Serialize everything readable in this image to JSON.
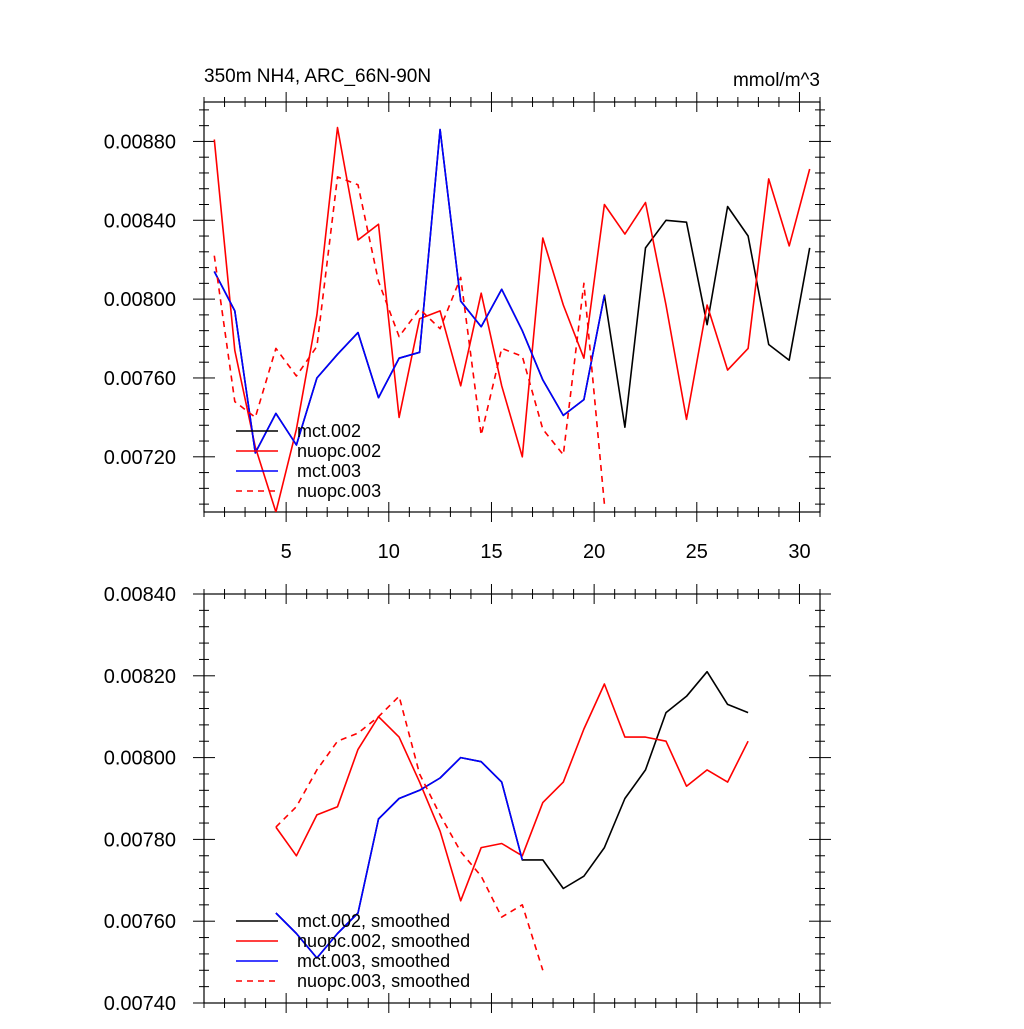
{
  "chart_data": [
    {
      "type": "line",
      "title": "350m NH4, ARC_66N-90N",
      "units": "mmol/m^3",
      "xlim": [
        1,
        31
      ],
      "ylim": [
        0.00692,
        0.009
      ],
      "xticks": [
        5,
        10,
        15,
        20,
        25,
        30
      ],
      "xtick_labels": [
        "5",
        "10",
        "15",
        "20",
        "25",
        "30"
      ],
      "yticks": [
        0.0072,
        0.0076,
        0.008,
        0.0084,
        0.0088
      ],
      "ytick_labels": [
        "0.00720",
        "0.00760",
        "0.00800",
        "0.00840",
        "0.00880"
      ],
      "series": [
        {
          "name": "mct.002",
          "color": "#000000",
          "dash": "solid",
          "x": [
            1.5,
            2.5,
            3.5,
            4.5,
            5.5,
            6.5,
            7.5,
            8.5,
            9.5,
            10.5,
            11.5,
            12.5,
            13.5,
            14.5,
            15.5,
            16.5,
            17.5,
            18.5,
            19.5,
            20.5,
            21.5,
            22.5,
            23.5,
            24.5,
            25.5,
            26.5,
            27.5,
            28.5,
            29.5,
            30.5
          ],
          "y": [
            0.00814,
            0.00794,
            0.00722,
            0.00742,
            0.00726,
            0.0076,
            0.00772,
            0.00783,
            0.0075,
            0.0077,
            0.00773,
            0.00886,
            0.00799,
            0.00786,
            0.00805,
            0.00784,
            0.00759,
            0.00741,
            0.00749,
            0.00802,
            0.00735,
            0.00826,
            0.0084,
            0.00839,
            0.00787,
            0.00847,
            0.00832,
            0.00777,
            0.00769,
            0.00826
          ]
        },
        {
          "name": "nuopc.002",
          "color": "#ff0000",
          "dash": "solid",
          "x": [
            1.5,
            2.5,
            3.5,
            4.5,
            5.5,
            6.5,
            7.5,
            8.5,
            9.5,
            10.5,
            11.5,
            12.5,
            13.5,
            14.5,
            15.5,
            16.5,
            17.5,
            18.5,
            19.5,
            20.5,
            21.5,
            22.5,
            23.5,
            24.5,
            25.5,
            26.5,
            27.5,
            28.5,
            29.5,
            30.5
          ],
          "y": [
            0.00881,
            0.00774,
            0.00725,
            0.00692,
            0.00734,
            0.00792,
            0.00887,
            0.0083,
            0.00838,
            0.0074,
            0.0079,
            0.00794,
            0.00756,
            0.00803,
            0.00756,
            0.0072,
            0.00831,
            0.00797,
            0.0077,
            0.00848,
            0.00833,
            0.00849,
            0.00797,
            0.00739,
            0.00797,
            0.00764,
            0.00775,
            0.00861,
            0.00827,
            0.00866
          ]
        },
        {
          "name": "mct.003",
          "color": "#0000ff",
          "dash": "solid",
          "x": [
            1.5,
            2.5,
            3.5,
            4.5,
            5.5,
            6.5,
            7.5,
            8.5,
            9.5,
            10.5,
            11.5,
            12.5,
            13.5,
            14.5,
            15.5,
            16.5,
            17.5,
            18.5,
            19.5,
            20.5
          ],
          "y": [
            0.00814,
            0.00794,
            0.00722,
            0.00742,
            0.00726,
            0.0076,
            0.00772,
            0.00783,
            0.0075,
            0.0077,
            0.00773,
            0.00886,
            0.00799,
            0.00786,
            0.00805,
            0.00784,
            0.00759,
            0.00741,
            0.00749,
            0.00802
          ]
        },
        {
          "name": "nuopc.003",
          "color": "#ff0000",
          "dash": "dashed",
          "x": [
            1.5,
            2.5,
            3.5,
            4.5,
            5.5,
            6.5,
            7.5,
            8.5,
            9.5,
            10.5,
            11.5,
            12.5,
            13.5,
            14.5,
            15.5,
            16.5,
            17.5,
            18.5,
            19.5,
            20.5
          ],
          "y": [
            0.00822,
            0.00748,
            0.0074,
            0.00775,
            0.00761,
            0.00776,
            0.00862,
            0.00858,
            0.00809,
            0.00781,
            0.00795,
            0.00785,
            0.00811,
            0.00731,
            0.00775,
            0.00771,
            0.00734,
            0.00721,
            0.00808,
            0.00696
          ]
        }
      ],
      "legend": [
        "mct.002",
        "nuopc.002",
        "mct.003",
        "nuopc.003"
      ],
      "legend_position": "bottom-left"
    },
    {
      "type": "line",
      "title": "",
      "xlim": [
        1,
        31
      ],
      "ylim": [
        0.0074,
        0.0084
      ],
      "xticks": [
        5,
        10,
        15,
        20,
        25,
        30
      ],
      "xtick_labels": [],
      "yticks": [
        0.0074,
        0.0076,
        0.0078,
        0.008,
        0.0082,
        0.0084
      ],
      "ytick_labels": [
        "0.00740",
        "0.00760",
        "0.00780",
        "0.00800",
        "0.00820",
        "0.00840"
      ],
      "series": [
        {
          "name": "mct.002, smoothed",
          "color": "#000000",
          "dash": "solid",
          "x": [
            4.5,
            5.5,
            6.5,
            7.5,
            8.5,
            9.5,
            10.5,
            11.5,
            12.5,
            13.5,
            14.5,
            15.5,
            16.5,
            17.5,
            18.5,
            19.5,
            20.5,
            21.5,
            22.5,
            23.5,
            24.5,
            25.5,
            26.5,
            27.5
          ],
          "y": [
            0.00762,
            0.00757,
            0.00751,
            0.00757,
            0.00762,
            0.00785,
            0.0079,
            0.00792,
            0.00795,
            0.008,
            0.00799,
            0.00794,
            0.00775,
            0.00775,
            0.00768,
            0.00771,
            0.00778,
            0.0079,
            0.00797,
            0.00811,
            0.00815,
            0.00821,
            0.00813,
            0.00811
          ]
        },
        {
          "name": "nuopc.002, smoothed",
          "color": "#ff0000",
          "dash": "solid",
          "x": [
            4.5,
            5.5,
            6.5,
            7.5,
            8.5,
            9.5,
            10.5,
            11.5,
            12.5,
            13.5,
            14.5,
            15.5,
            16.5,
            17.5,
            18.5,
            19.5,
            20.5,
            21.5,
            22.5,
            23.5,
            24.5,
            25.5,
            26.5,
            27.5
          ],
          "y": [
            0.00783,
            0.00776,
            0.00786,
            0.00788,
            0.00802,
            0.0081,
            0.00805,
            0.00794,
            0.00782,
            0.00765,
            0.00778,
            0.00779,
            0.00776,
            0.00789,
            0.00794,
            0.00807,
            0.00818,
            0.00805,
            0.00805,
            0.00804,
            0.00793,
            0.00797,
            0.00794,
            0.00804
          ]
        },
        {
          "name": "mct.003, smoothed",
          "color": "#0000ff",
          "dash": "solid",
          "x": [
            4.5,
            5.5,
            6.5,
            7.5,
            8.5,
            9.5,
            10.5,
            11.5,
            12.5,
            13.5,
            14.5,
            15.5,
            16.5
          ],
          "y": [
            0.00762,
            0.00757,
            0.00751,
            0.00757,
            0.00762,
            0.00785,
            0.0079,
            0.00792,
            0.00795,
            0.008,
            0.00799,
            0.00794,
            0.00775
          ]
        },
        {
          "name": "nuopc.003, smoothed",
          "color": "#ff0000",
          "dash": "dashed",
          "x": [
            4.5,
            5.5,
            6.5,
            7.5,
            8.5,
            9.5,
            10.5,
            11.5,
            12.5,
            13.5,
            14.5,
            15.5,
            16.5,
            17.5
          ],
          "y": [
            0.00783,
            0.00788,
            0.00797,
            0.00804,
            0.00806,
            0.0081,
            0.00815,
            0.00796,
            0.00786,
            0.00777,
            0.00771,
            0.00761,
            0.00764,
            0.00748
          ]
        }
      ],
      "legend": [
        "mct.002, smoothed",
        "nuopc.002, smoothed",
        "mct.003, smoothed",
        "nuopc.003, smoothed"
      ],
      "legend_position": "bottom-left"
    }
  ]
}
